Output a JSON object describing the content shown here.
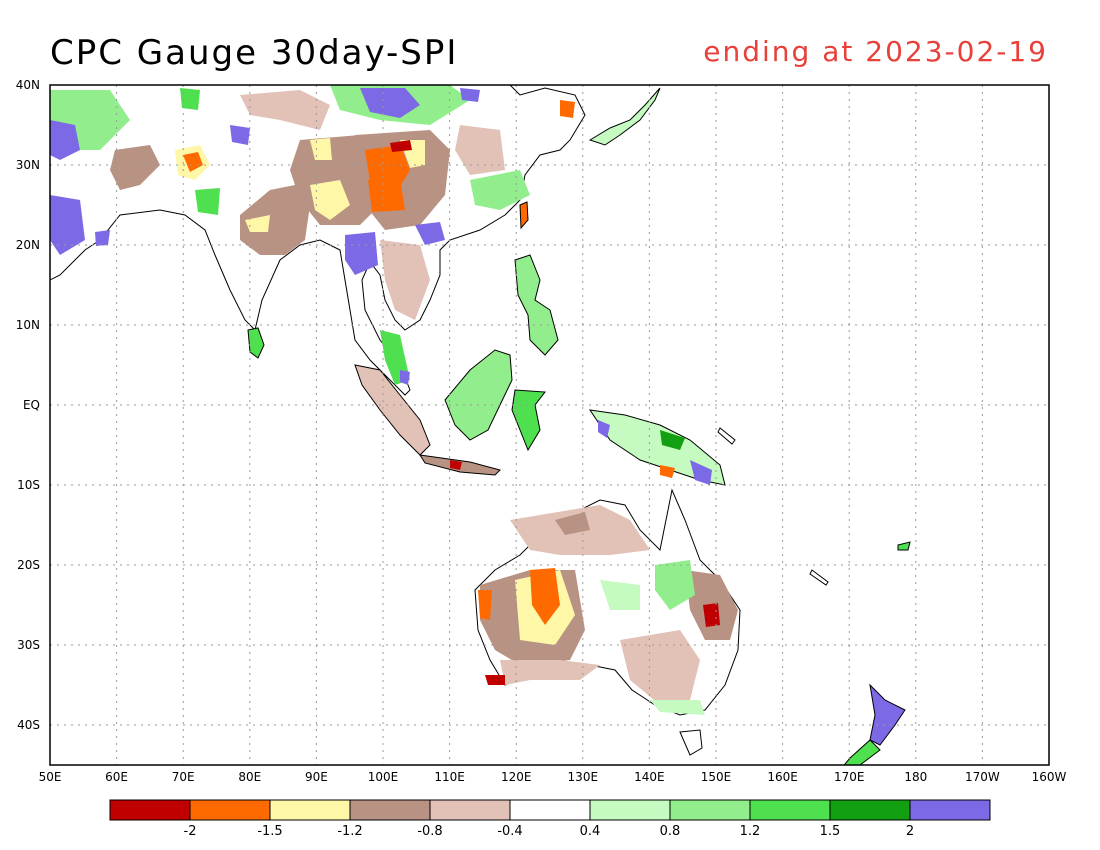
{
  "title": "CPC Gauge 30day-SPI",
  "subtitle": "ending at 2023-02-19",
  "colors": {
    "title": "#000000",
    "subtitle": "#e8403a",
    "grid": "#999999",
    "coast": "#000000"
  },
  "axes": {
    "lon_labels": [
      "50E",
      "60E",
      "70E",
      "80E",
      "90E",
      "100E",
      "110E",
      "120E",
      "130E",
      "140E",
      "150E",
      "160E",
      "170E",
      "180",
      "170W",
      "160W"
    ],
    "lat_labels": [
      "40N",
      "30N",
      "20N",
      "10N",
      "EQ",
      "10S",
      "20S",
      "30S",
      "40S"
    ],
    "lon_range": [
      50,
      200
    ],
    "lat_range": [
      -45,
      40
    ]
  },
  "colorbar": {
    "colors": [
      "#c00000",
      "#ff6a00",
      "#fff7a8",
      "#b89282",
      "#e2c1b6",
      "#ffffff",
      "#c5fbc0",
      "#92ee8c",
      "#4fe04f",
      "#12a012",
      "#7b69e6"
    ],
    "labels": [
      "-2",
      "-1.5",
      "-1.2",
      "-0.8",
      "-0.4",
      "0.4",
      "0.8",
      "1.2",
      "1.5",
      "2"
    ]
  }
}
